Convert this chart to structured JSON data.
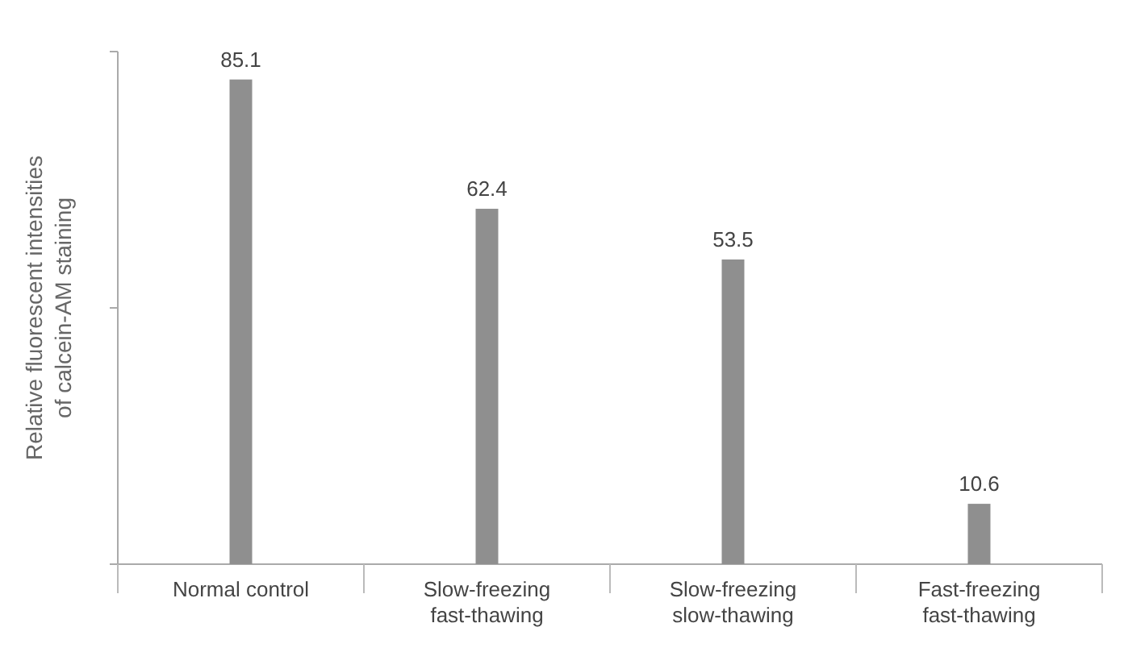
{
  "chart_data": {
    "type": "bar",
    "ylabel": "Relative fluorescent intensities of calcein-AM staining",
    "categories": [
      "Normal control",
      "Slow-freezing fast-thawing",
      "Slow-freezing slow-thawing",
      "Fast-freezing fast-thawing"
    ],
    "values": [
      85.1,
      62.4,
      53.5,
      10.6
    ],
    "color": "#8f8f8f",
    "ylim": [
      0,
      90
    ],
    "yticks": [
      {
        "value": 0,
        "label": null
      },
      {
        "value": 45,
        "label": null
      },
      {
        "value": 90,
        "label": null
      }
    ],
    "data_labels": true
  }
}
